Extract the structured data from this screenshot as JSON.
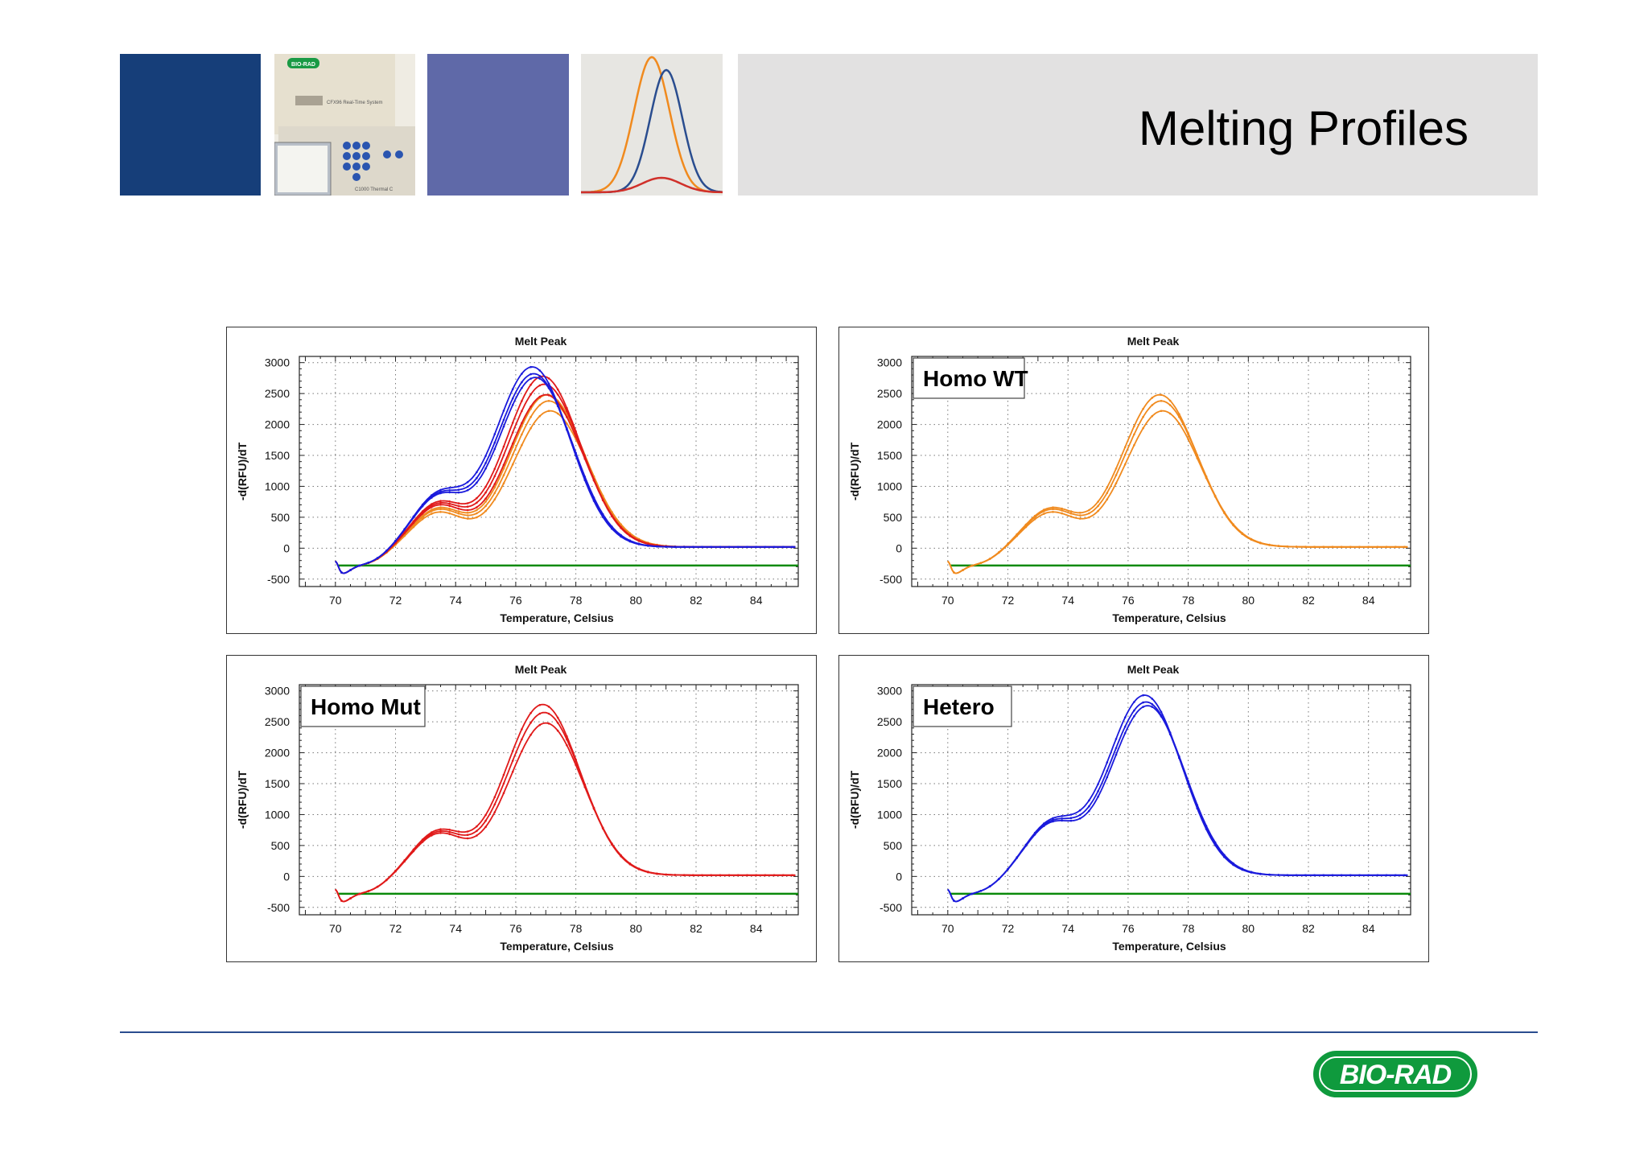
{
  "header": {
    "title": "Melting Profiles",
    "colors": {
      "navy": "#163e79",
      "periwinkle": "#5f69a8",
      "title_bar": "#e2e1e1"
    }
  },
  "decor": {
    "instrument_labels": [
      "BIO-RAD",
      "CFX96 Real-Time System",
      "C1000 Thermal C"
    ]
  },
  "footer": {
    "logo_text": "BIO-RAD",
    "logo_color": "#0f9a3d"
  },
  "chart_data": [
    {
      "type": "line",
      "title": "Melt Peak",
      "xlabel": "Temperature, Celsius",
      "ylabel": "-d(RFU)/dT",
      "xlim": [
        68.8,
        85.4
      ],
      "ylim": [
        -620,
        3100
      ],
      "xticks": [
        70,
        72,
        74,
        76,
        78,
        80,
        82,
        84
      ],
      "yticks": [
        -500,
        0,
        500,
        1000,
        1500,
        2000,
        2500,
        3000
      ],
      "grid": true,
      "threshold": -280,
      "label": "",
      "series": [
        {
          "group": "wt",
          "color": "#f08a1e",
          "peak": 2480,
          "tm": 77.05,
          "shoulder": 620
        },
        {
          "group": "wt",
          "color": "#f08a1e",
          "peak": 2380,
          "tm": 77.1,
          "shoulder": 600
        },
        {
          "group": "wt",
          "color": "#f08a1e",
          "peak": 2220,
          "tm": 77.15,
          "shoulder": 560
        },
        {
          "group": "mut",
          "color": "#e01a1a",
          "peak": 2780,
          "tm": 76.9,
          "shoulder": 700
        },
        {
          "group": "mut",
          "color": "#e01a1a",
          "peak": 2650,
          "tm": 76.95,
          "shoulder": 680
        },
        {
          "group": "mut",
          "color": "#e01a1a",
          "peak": 2480,
          "tm": 77.0,
          "shoulder": 660
        },
        {
          "group": "het",
          "color": "#1a1adc",
          "peak": 2930,
          "tm": 76.55,
          "shoulder": 800
        },
        {
          "group": "het",
          "color": "#1a1adc",
          "peak": 2820,
          "tm": 76.6,
          "shoulder": 790
        },
        {
          "group": "het",
          "color": "#1a1adc",
          "peak": 2760,
          "tm": 76.65,
          "shoulder": 780
        }
      ]
    },
    {
      "type": "line",
      "title": "Melt Peak",
      "xlabel": "Temperature, Celsius",
      "ylabel": "-d(RFU)/dT",
      "xlim": [
        68.8,
        85.4
      ],
      "ylim": [
        -620,
        3100
      ],
      "xticks": [
        70,
        72,
        74,
        76,
        78,
        80,
        82,
        84
      ],
      "yticks": [
        -500,
        0,
        500,
        1000,
        1500,
        2000,
        2500,
        3000
      ],
      "grid": true,
      "threshold": -280,
      "label": "Homo WT",
      "series": [
        {
          "group": "wt",
          "color": "#f08a1e",
          "peak": 2480,
          "tm": 77.05,
          "shoulder": 620
        },
        {
          "group": "wt",
          "color": "#f08a1e",
          "peak": 2380,
          "tm": 77.1,
          "shoulder": 600
        },
        {
          "group": "wt",
          "color": "#f08a1e",
          "peak": 2220,
          "tm": 77.15,
          "shoulder": 560
        }
      ]
    },
    {
      "type": "line",
      "title": "Melt Peak",
      "xlabel": "Temperature, Celsius",
      "ylabel": "-d(RFU)/dT",
      "xlim": [
        68.8,
        85.4
      ],
      "ylim": [
        -620,
        3100
      ],
      "xticks": [
        70,
        72,
        74,
        76,
        78,
        80,
        82,
        84
      ],
      "yticks": [
        -500,
        0,
        500,
        1000,
        1500,
        2000,
        2500,
        3000
      ],
      "grid": true,
      "threshold": -280,
      "label": "Homo Mut",
      "series": [
        {
          "group": "mut",
          "color": "#e01a1a",
          "peak": 2780,
          "tm": 76.9,
          "shoulder": 700
        },
        {
          "group": "mut",
          "color": "#e01a1a",
          "peak": 2650,
          "tm": 76.95,
          "shoulder": 680
        },
        {
          "group": "mut",
          "color": "#e01a1a",
          "peak": 2480,
          "tm": 77.0,
          "shoulder": 660
        }
      ]
    },
    {
      "type": "line",
      "title": "Melt Peak",
      "xlabel": "Temperature, Celsius",
      "ylabel": "-d(RFU)/dT",
      "xlim": [
        68.8,
        85.4
      ],
      "ylim": [
        -620,
        3100
      ],
      "xticks": [
        70,
        72,
        74,
        76,
        78,
        80,
        82,
        84
      ],
      "yticks": [
        -500,
        0,
        500,
        1000,
        1500,
        2000,
        2500,
        3000
      ],
      "grid": true,
      "threshold": -280,
      "label": "Hetero",
      "series": [
        {
          "group": "het",
          "color": "#1a1adc",
          "peak": 2930,
          "tm": 76.55,
          "shoulder": 800
        },
        {
          "group": "het",
          "color": "#1a1adc",
          "peak": 2820,
          "tm": 76.6,
          "shoulder": 790
        },
        {
          "group": "het",
          "color": "#1a1adc",
          "peak": 2760,
          "tm": 76.65,
          "shoulder": 780
        }
      ]
    }
  ]
}
